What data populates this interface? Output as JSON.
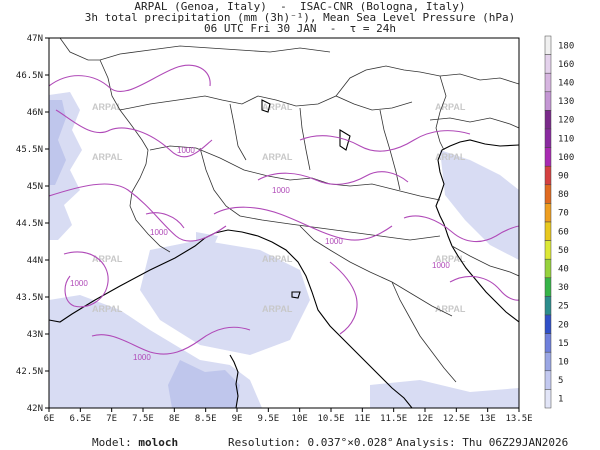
{
  "header": {
    "line1": "ARPAL (Genoa, Italy)  -  ISAC-CNR (Bologna, Italy)",
    "line2": "3h total precipitation (mm (3h)⁻¹), Mean Sea Level Pressure (hPa)",
    "line3": "06 UTC Fri 30 JAN  -  τ = 24h"
  },
  "map": {
    "lat_labels": [
      "47N",
      "46.5N",
      "46N",
      "45.5N",
      "45N",
      "44.5N",
      "44N",
      "43.5N",
      "43N",
      "42.5N",
      "42N"
    ],
    "lon_labels": [
      "6E",
      "6.5E",
      "7E",
      "7.5E",
      "8E",
      "8.5E",
      "9E",
      "9.5E",
      "10E",
      "10.5E",
      "11E",
      "11.5E",
      "12E",
      "12.5E",
      "13E",
      "13.5E"
    ],
    "isobar_label": "1000",
    "watermark": "ARPAL",
    "colors": {
      "isobar": "#b04ab8",
      "coast": "#000000",
      "border": "#333333",
      "precip_light": "#d8dcf3",
      "precip_mid": "#bfc6ec",
      "watermark": "#c8c8c8"
    }
  },
  "colorbar": {
    "levels": [
      "180",
      "160",
      "140",
      "130",
      "120",
      "110",
      "100",
      "90",
      "80",
      "70",
      "60",
      "50",
      "40",
      "30",
      "25",
      "20",
      "15",
      "10",
      "5",
      "1"
    ],
    "colors": [
      "#f0f0f0",
      "#e4d2ec",
      "#d6b5e0",
      "#c496d4",
      "#7a2a8a",
      "#8a2aa0",
      "#a82ab2",
      "#d44040",
      "#e06a20",
      "#ee9e20",
      "#e8c81e",
      "#dce836",
      "#96d23c",
      "#36b448",
      "#2b8c8c",
      "#3050c8",
      "#6f80dc",
      "#9aa6e4",
      "#c3c9f0",
      "#e2e5f7"
    ]
  },
  "footer": {
    "model_label": "Model:",
    "model_value": "moloch",
    "resolution_label": "Resolution:",
    "resolution_value": "0.037°×0.028°",
    "analysis_label": "Analysis:",
    "analysis_value": "Thu 06Z29JAN2026"
  }
}
